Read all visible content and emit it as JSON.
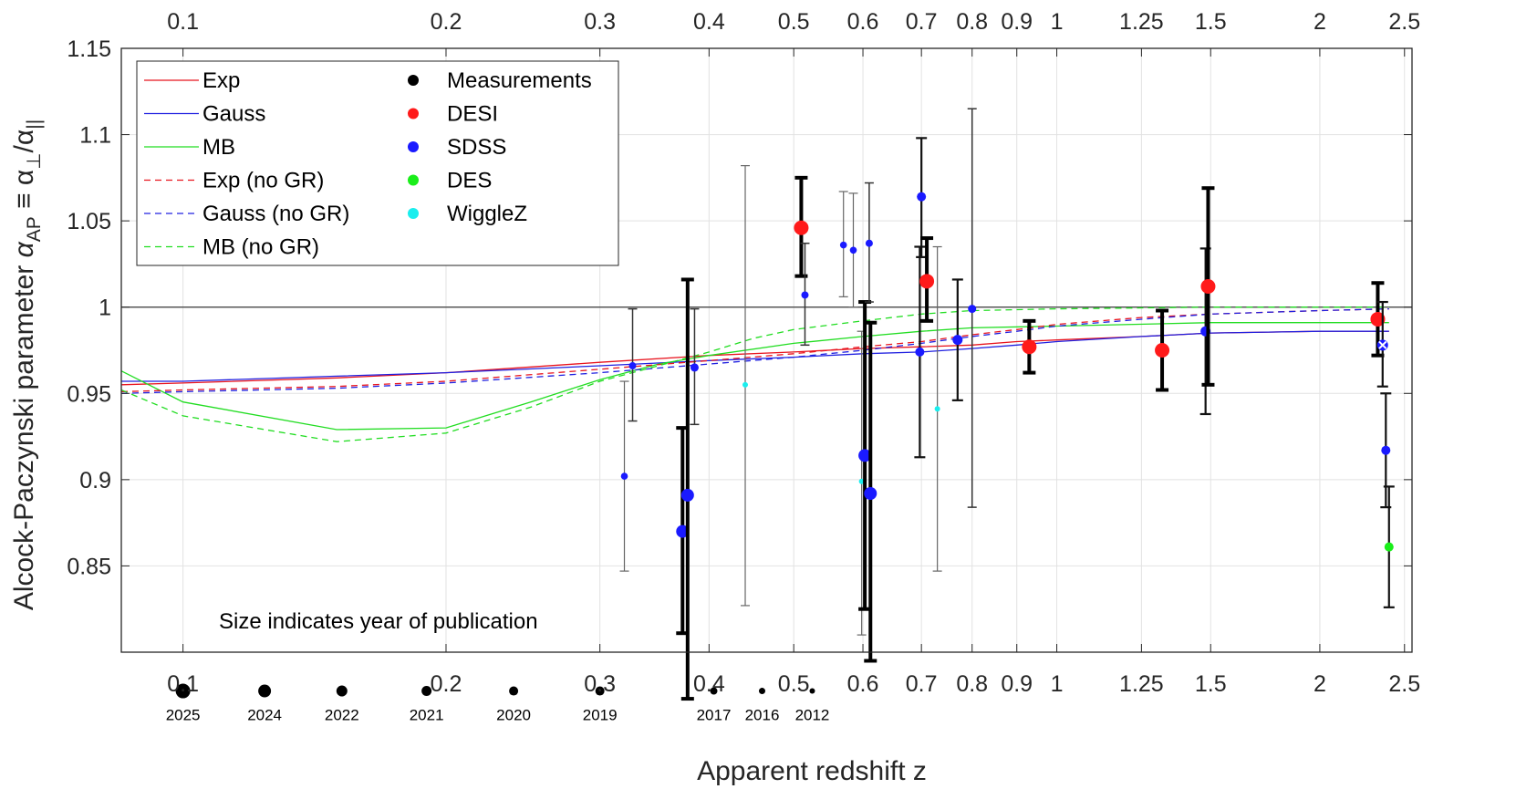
{
  "chart_data": {
    "type": "scatter",
    "xscale": "log",
    "xlim": [
      0.085,
      2.55
    ],
    "ylim": [
      0.8,
      1.15
    ],
    "grid": true,
    "xlabel": "Apparent redshift z",
    "ylabel_parts": [
      "Alcock-Paczynski parameter ",
      "α",
      "AP",
      " ≡ α",
      "⊥",
      "/α",
      "||"
    ],
    "x_ticks": [
      {
        "v": 0.1,
        "label": "0.1"
      },
      {
        "v": 0.2,
        "label": "0.2"
      },
      {
        "v": 0.3,
        "label": "0.3"
      },
      {
        "v": 0.4,
        "label": "0.4"
      },
      {
        "v": 0.5,
        "label": "0.5"
      },
      {
        "v": 0.6,
        "label": "0.6"
      },
      {
        "v": 0.7,
        "label": "0.7"
      },
      {
        "v": 0.8,
        "label": "0.8"
      },
      {
        "v": 0.9,
        "label": "0.9"
      },
      {
        "v": 1.0,
        "label": "1"
      },
      {
        "v": 1.25,
        "label": "1.25"
      },
      {
        "v": 1.5,
        "label": "1.5"
      },
      {
        "v": 2.0,
        "label": "2"
      },
      {
        "v": 2.5,
        "label": "2.5"
      }
    ],
    "y_ticks": [
      {
        "v": 0.85,
        "label": "0.85"
      },
      {
        "v": 0.9,
        "label": "0.9"
      },
      {
        "v": 0.95,
        "label": "0.95"
      },
      {
        "v": 1.0,
        "label": "1"
      },
      {
        "v": 1.05,
        "label": "1.05"
      },
      {
        "v": 1.1,
        "label": "1.1"
      },
      {
        "v": 1.15,
        "label": "1.15"
      }
    ],
    "reference_line": 1.0,
    "series": [
      {
        "name": "Exp",
        "color": "#e8141e",
        "dash": "solid",
        "x": [
          0.085,
          0.1,
          0.15,
          0.2,
          0.3,
          0.4,
          0.5,
          0.6,
          0.7,
          0.8,
          0.9,
          1.0,
          1.25,
          1.5,
          2.0,
          2.4
        ],
        "y": [
          0.955,
          0.956,
          0.959,
          0.962,
          0.968,
          0.972,
          0.974,
          0.976,
          0.977,
          0.978,
          0.98,
          0.981,
          0.983,
          0.985,
          0.986,
          0.986
        ]
      },
      {
        "name": "Gauss",
        "color": "#2020e0",
        "dash": "solid",
        "x": [
          0.085,
          0.1,
          0.15,
          0.2,
          0.3,
          0.4,
          0.5,
          0.6,
          0.7,
          0.8,
          0.9,
          1.0,
          1.25,
          1.5,
          2.0,
          2.4
        ],
        "y": [
          0.957,
          0.957,
          0.96,
          0.962,
          0.966,
          0.969,
          0.971,
          0.973,
          0.974,
          0.976,
          0.978,
          0.98,
          0.983,
          0.985,
          0.986,
          0.986
        ]
      },
      {
        "name": "MB",
        "color": "#22dd22",
        "dash": "solid",
        "x": [
          0.085,
          0.1,
          0.15,
          0.2,
          0.25,
          0.3,
          0.35,
          0.4,
          0.5,
          0.6,
          0.7,
          0.8,
          1.0,
          1.5,
          2.4
        ],
        "y": [
          0.963,
          0.945,
          0.929,
          0.93,
          0.945,
          0.958,
          0.967,
          0.972,
          0.979,
          0.983,
          0.986,
          0.988,
          0.989,
          0.991,
          0.991
        ]
      },
      {
        "name": "Exp (no GR)",
        "color": "#e8141e",
        "dash": "dashed",
        "x": [
          0.085,
          0.1,
          0.15,
          0.2,
          0.3,
          0.4,
          0.5,
          0.6,
          0.7,
          0.8,
          0.9,
          1.0,
          1.25,
          1.5,
          2.0,
          2.4
        ],
        "y": [
          0.951,
          0.952,
          0.954,
          0.957,
          0.964,
          0.969,
          0.973,
          0.977,
          0.98,
          0.984,
          0.987,
          0.99,
          0.994,
          0.996,
          0.998,
          0.999
        ]
      },
      {
        "name": "Gauss (no GR)",
        "color": "#2020e0",
        "dash": "dashed",
        "x": [
          0.085,
          0.1,
          0.15,
          0.2,
          0.3,
          0.4,
          0.5,
          0.6,
          0.7,
          0.8,
          0.9,
          1.0,
          1.25,
          1.5,
          2.0,
          2.4
        ],
        "y": [
          0.95,
          0.951,
          0.953,
          0.956,
          0.962,
          0.967,
          0.971,
          0.975,
          0.979,
          0.983,
          0.986,
          0.989,
          0.993,
          0.996,
          0.998,
          0.999
        ]
      },
      {
        "name": "MB (no GR)",
        "color": "#22dd22",
        "dash": "dashed",
        "x": [
          0.085,
          0.1,
          0.15,
          0.2,
          0.25,
          0.3,
          0.35,
          0.4,
          0.45,
          0.5,
          0.6,
          0.7,
          0.8,
          1.0,
          1.5,
          2.4
        ],
        "y": [
          0.952,
          0.937,
          0.922,
          0.927,
          0.942,
          0.957,
          0.966,
          0.974,
          0.982,
          0.987,
          0.992,
          0.996,
          0.998,
          0.999,
          1.0,
          1.0
        ]
      }
    ],
    "measurement_legend": [
      {
        "label": "Measurements",
        "color": "#000000"
      },
      {
        "label": "DESI",
        "color": "#ff1a1a"
      },
      {
        "label": "SDSS",
        "color": "#1a1aff"
      },
      {
        "label": "DES",
        "color": "#1aee1a"
      },
      {
        "label": "WiggleZ",
        "color": "#1aeeee"
      }
    ],
    "points": [
      {
        "z": 0.32,
        "y": 0.902,
        "lo": 0.847,
        "hi": 0.957,
        "survey": "SDSS",
        "year": 2014
      },
      {
        "z": 0.327,
        "y": 0.966,
        "lo": 0.934,
        "hi": 0.999,
        "survey": "SDSS",
        "year": 2016
      },
      {
        "z": 0.373,
        "y": 0.87,
        "lo": 0.811,
        "hi": 0.93,
        "survey": "SDSS",
        "year": 2024
      },
      {
        "z": 0.378,
        "y": 0.891,
        "lo": 0.773,
        "hi": 1.016,
        "survey": "SDSS",
        "year": 2024
      },
      {
        "z": 0.385,
        "y": 0.965,
        "lo": 0.932,
        "hi": 0.999,
        "survey": "SDSS",
        "year": 2017
      },
      {
        "z": 0.44,
        "y": 0.955,
        "lo": 0.827,
        "hi": 1.082,
        "survey": "WiggleZ",
        "year": 2012
      },
      {
        "z": 0.51,
        "y": 1.046,
        "lo": 1.018,
        "hi": 1.075,
        "survey": "DESI",
        "year": 2025
      },
      {
        "z": 0.515,
        "y": 1.007,
        "lo": 0.978,
        "hi": 1.037,
        "survey": "SDSS",
        "year": 2016
      },
      {
        "z": 0.57,
        "y": 1.036,
        "lo": 1.006,
        "hi": 1.067,
        "survey": "SDSS",
        "year": 2014
      },
      {
        "z": 0.585,
        "y": 1.033,
        "lo": 1.0,
        "hi": 1.066,
        "survey": "SDSS",
        "year": 2015
      },
      {
        "z": 0.598,
        "y": 0.899,
        "lo": 0.81,
        "hi": 0.986,
        "survey": "WiggleZ",
        "year": 2012
      },
      {
        "z": 0.603,
        "y": 0.914,
        "lo": 0.825,
        "hi": 1.003,
        "survey": "SDSS",
        "year": 2024
      },
      {
        "z": 0.61,
        "y": 1.037,
        "lo": 1.003,
        "hi": 1.072,
        "survey": "SDSS",
        "year": 2016
      },
      {
        "z": 0.612,
        "y": 0.892,
        "lo": 0.795,
        "hi": 0.991,
        "survey": "SDSS",
        "year": 2024
      },
      {
        "z": 0.697,
        "y": 0.974,
        "lo": 0.913,
        "hi": 1.035,
        "survey": "SDSS",
        "year": 2019
      },
      {
        "z": 0.7,
        "y": 1.064,
        "lo": 1.029,
        "hi": 1.098,
        "survey": "SDSS",
        "year": 2020
      },
      {
        "z": 0.71,
        "y": 1.015,
        "lo": 0.992,
        "hi": 1.04,
        "survey": "DESI",
        "year": 2025
      },
      {
        "z": 0.73,
        "y": 0.941,
        "lo": 0.847,
        "hi": 1.035,
        "survey": "WiggleZ",
        "year": 2012
      },
      {
        "z": 0.77,
        "y": 0.981,
        "lo": 0.946,
        "hi": 1.016,
        "survey": "SDSS",
        "year": 2021
      },
      {
        "z": 0.8,
        "y": 0.999,
        "lo": 0.884,
        "hi": 1.115,
        "survey": "SDSS",
        "year": 2017
      },
      {
        "z": 0.93,
        "y": 0.977,
        "lo": 0.962,
        "hi": 0.992,
        "survey": "DESI",
        "year": 2025
      },
      {
        "z": 1.32,
        "y": 0.975,
        "lo": 0.952,
        "hi": 0.998,
        "survey": "DESI",
        "year": 2025
      },
      {
        "z": 1.48,
        "y": 0.986,
        "lo": 0.938,
        "hi": 1.034,
        "survey": "SDSS",
        "year": 2021
      },
      {
        "z": 1.49,
        "y": 1.012,
        "lo": 0.955,
        "hi": 1.069,
        "survey": "DESI",
        "year": 2025
      },
      {
        "z": 2.33,
        "y": 0.993,
        "lo": 0.972,
        "hi": 1.014,
        "survey": "DESI",
        "year": 2025
      },
      {
        "z": 2.36,
        "y": 0.978,
        "lo": 0.954,
        "hi": 1.003,
        "survey": "SDSS",
        "year": 2022,
        "crossed": true
      },
      {
        "z": 2.38,
        "y": 0.917,
        "lo": 0.884,
        "hi": 0.95,
        "survey": "SDSS",
        "year": 2020
      },
      {
        "z": 2.4,
        "y": 0.861,
        "lo": 0.826,
        "hi": 0.896,
        "survey": "DES",
        "year": 2019
      }
    ],
    "size_legend": {
      "title": "Size indicates year of publication",
      "y": 0.7775,
      "items": [
        {
          "year": "2025",
          "z": 0.1,
          "r": 8
        },
        {
          "year": "2024",
          "z": 0.124,
          "r": 7
        },
        {
          "year": "2022",
          "z": 0.152,
          "r": 6
        },
        {
          "year": "2021",
          "z": 0.19,
          "r": 5.5
        },
        {
          "year": "2020",
          "z": 0.239,
          "r": 5
        },
        {
          "year": "2019",
          "z": 0.3,
          "r": 5
        },
        {
          "year": "2017",
          "z": 0.405,
          "r": 4
        },
        {
          "year": "2016",
          "z": 0.46,
          "r": 3.5
        },
        {
          "year": "2012",
          "z": 0.525,
          "r": 3
        }
      ]
    }
  }
}
